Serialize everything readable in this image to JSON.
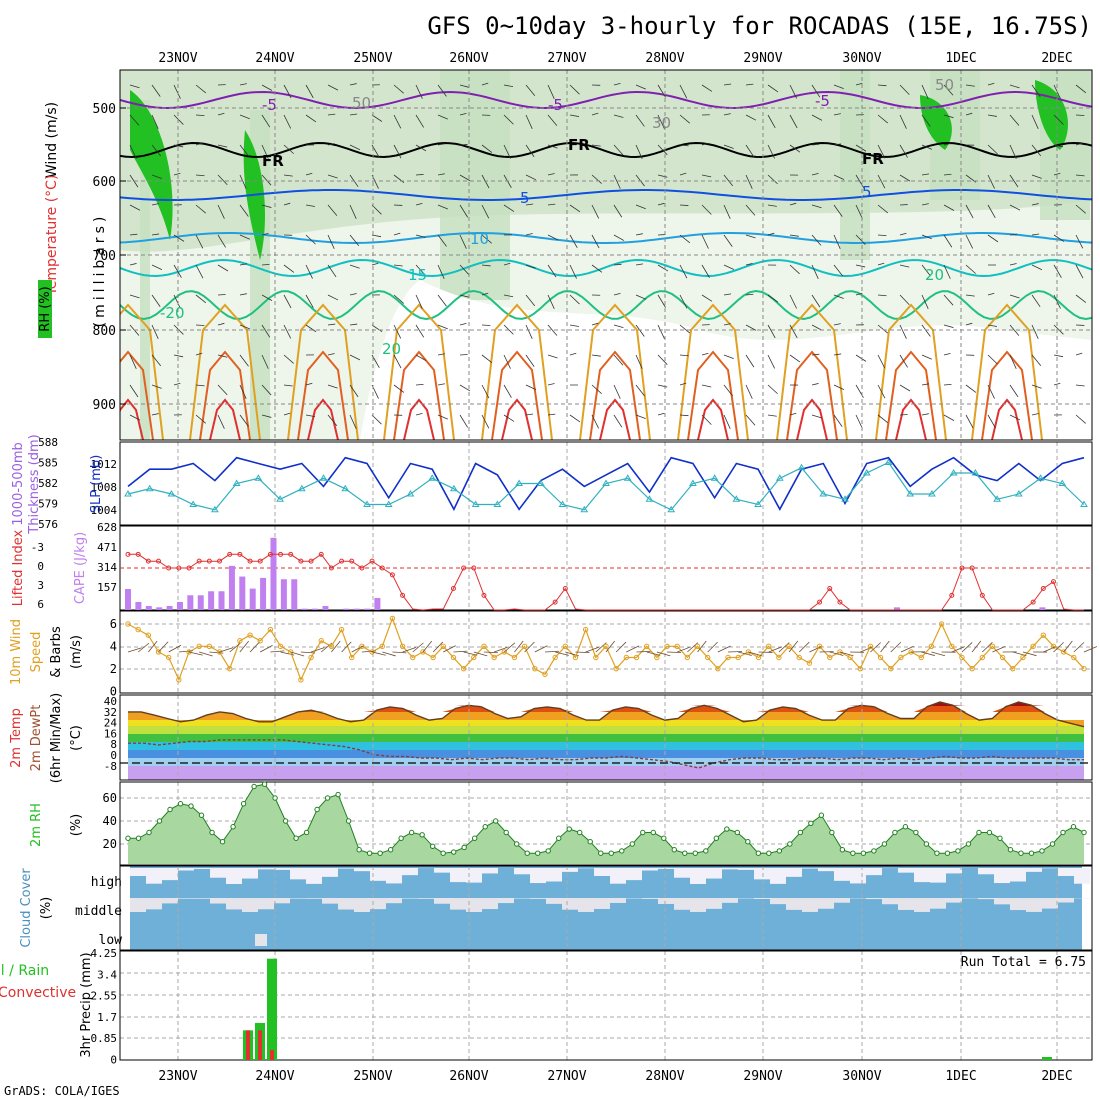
{
  "title": "GFS 0~10day 3-hourly for ROCADAS (15E, 16.75S)",
  "credit": "GrADS: COLA/IGES",
  "dates": [
    "23NOV",
    "24NOV",
    "25NOV",
    "26NOV",
    "27NOV",
    "28NOV",
    "29NOV",
    "30NOV",
    "1DEC",
    "2DEC"
  ],
  "colors": {
    "green": "#22c022",
    "red": "#e03030",
    "blue": "#1030c8",
    "cyan": "#30b0c0",
    "purple": "#c080f0",
    "orange": "#e0a020",
    "sky": "#6fb0d8",
    "cloud_light": "#f2f0f8"
  },
  "panels": {
    "upper": {
      "label_wind": "Wind (m/s)",
      "label_temp": "Temperature (°C)",
      "label_rh": "RH (%)",
      "label_units": "(millibars)",
      "y_ticks": [
        "500",
        "600",
        "700",
        "800",
        "900"
      ],
      "contour_labels": [
        "-5",
        "-5",
        "-5",
        "FR",
        "FR",
        "FR",
        "5",
        "5",
        "10",
        "15",
        "20",
        "20",
        "-20",
        "50",
        "50",
        "30"
      ]
    },
    "thickness": {
      "label_a": "1000-500mb",
      "label_b": "Thickness (dm)",
      "label_c": "SLP (mb)",
      "left_ticks": [
        "588",
        "585",
        "582",
        "579",
        "576"
      ],
      "right_ticks": [
        "1012",
        "1008",
        "1004"
      ]
    },
    "cape": {
      "label_a": "Lifted Index",
      "label_b": "CAPE (J/kg)",
      "left_ticks": [
        "-3",
        "0",
        "3",
        "6"
      ],
      "right_ticks": [
        "628",
        "471",
        "314",
        "157"
      ]
    },
    "wind": {
      "label_a": "10m Wind",
      "label_b": "Speed",
      "label_c": "& Barbs",
      "label_d": "(m/s)",
      "ticks": [
        "6",
        "4",
        "2",
        "0"
      ]
    },
    "temp": {
      "label_a": "2m Temp",
      "label_b": "2m DewPt",
      "label_c": "(6hr Min/Max)",
      "label_d": "(°C)",
      "ticks": [
        "40",
        "32",
        "24",
        "16",
        "8",
        "0",
        "-8"
      ]
    },
    "rh": {
      "label_a": "2m RH",
      "label_b": "(%)",
      "ticks": [
        "60",
        "40",
        "20"
      ]
    },
    "cloud": {
      "label_a": "Cloud Cover",
      "label_b": "(%)",
      "levels": [
        "high",
        "middle",
        "low"
      ]
    },
    "precip": {
      "label_a": "Total / Rain",
      "label_b": "Convective",
      "label_c": "3hr Precip (mm)",
      "ticks": [
        "4.25",
        "3.4",
        "2.55",
        "1.7",
        "0.85",
        "0"
      ],
      "run_total": "Run Total = 6.75"
    }
  },
  "chart_data": [
    {
      "type": "line",
      "name": "thickness_slp",
      "x_start": "22NOV 12Z",
      "x_step_hours": 6,
      "series": [
        {
          "name": "SLP",
          "color": "#1030c8",
          "values": [
            1008,
            1011,
            1011,
            1012,
            1009,
            1013,
            1012,
            1011,
            1012,
            1008,
            1013,
            1012,
            1006,
            1012,
            1011,
            1004,
            1012,
            1010,
            1004,
            1009,
            1011,
            1008,
            1010,
            1012,
            1007,
            1013,
            1012,
            1006,
            1012,
            1011,
            1004,
            1011,
            1012,
            1005,
            1012,
            1013,
            1008,
            1011,
            1013,
            1010,
            1009,
            1012,
            1009,
            1012,
            1013
          ]
        },
        {
          "name": "Thickness",
          "color": "#30b0c0",
          "values": [
            580,
            581,
            580,
            578,
            577,
            582,
            583,
            579,
            581,
            583,
            581,
            578,
            578,
            580,
            583,
            581,
            578,
            578,
            582,
            582,
            578,
            577,
            582,
            583,
            579,
            577,
            582,
            583,
            579,
            578,
            583,
            585,
            580,
            579,
            584,
            586,
            580,
            580,
            584,
            584,
            579,
            580,
            583,
            582,
            578
          ]
        }
      ]
    },
    {
      "type": "bar",
      "name": "cape",
      "units": "J/kg",
      "values": [
        157,
        60,
        30,
        20,
        30,
        60,
        110,
        110,
        140,
        140,
        330,
        250,
        160,
        240,
        540,
        230,
        230,
        10,
        10,
        30,
        0,
        10,
        10,
        10,
        90,
        0,
        0,
        0,
        0,
        0,
        0,
        0,
        0,
        0,
        0,
        0,
        0,
        0,
        0,
        0,
        0,
        0,
        0,
        0,
        0,
        0,
        0,
        0,
        0,
        0,
        0,
        0,
        0,
        0,
        0,
        0,
        0,
        0,
        0,
        0,
        0,
        0,
        0,
        0,
        0,
        0,
        0,
        0,
        0,
        0,
        0,
        0,
        0,
        0,
        20,
        0,
        0,
        0,
        0,
        0,
        0,
        0,
        0,
        0,
        0,
        0,
        0,
        0,
        20,
        0,
        0,
        0,
        0
      ]
    },
    {
      "type": "line",
      "name": "lifted_index",
      "values": [
        -2,
        -2,
        -1,
        -1,
        0,
        0,
        0,
        -1,
        -1,
        -1,
        -2,
        -2,
        -1,
        -1,
        -2,
        -2,
        -2,
        -1,
        -1,
        -2,
        0,
        -1,
        -1,
        0,
        -1,
        0,
        1,
        4,
        6,
        7,
        6,
        6,
        3,
        0,
        0,
        4,
        7,
        7,
        6,
        7,
        7,
        7,
        5,
        3,
        6,
        7,
        7,
        7,
        7,
        7,
        7,
        7,
        7,
        7,
        7,
        7,
        7,
        7,
        7,
        7,
        7,
        7,
        7,
        7,
        7,
        7,
        7,
        7,
        5,
        3,
        5,
        7,
        7,
        7,
        7,
        7,
        7,
        7,
        7,
        7,
        7,
        4,
        0,
        0,
        4,
        7,
        7,
        7,
        7,
        5,
        3,
        2,
        6,
        7,
        7
      ]
    },
    {
      "type": "line",
      "name": "wind10m",
      "units": "m/s",
      "values": [
        6,
        5.5,
        5,
        3.5,
        3,
        1,
        3.5,
        4,
        4,
        3.5,
        2,
        4.5,
        5,
        4.5,
        5.5,
        4,
        3.5,
        1,
        3,
        4.5,
        4,
        5.5,
        3,
        4,
        3.5,
        4,
        6.5,
        4,
        3,
        3.5,
        3,
        4,
        3,
        2,
        3,
        4,
        3,
        3.5,
        3,
        4,
        2,
        1.5,
        3,
        4,
        3,
        5.5,
        3,
        4,
        2,
        3,
        3,
        4,
        3,
        4,
        4,
        3,
        4,
        3,
        2,
        3,
        3,
        3.5,
        3,
        4,
        3,
        4,
        3,
        2.5,
        4,
        3,
        3.5,
        3,
        2,
        4,
        3,
        2,
        3,
        3.5,
        3,
        4,
        6,
        4,
        3,
        2,
        3,
        4,
        3,
        2,
        3,
        4,
        5,
        4,
        3.5,
        3,
        2
      ]
    },
    {
      "type": "area",
      "name": "temp2m",
      "units": "°C",
      "values": [
        31,
        31,
        29,
        27,
        25,
        26,
        29,
        31,
        30,
        27,
        25,
        25,
        28,
        31,
        32,
        30,
        27,
        25,
        26,
        32,
        34,
        33,
        29,
        26,
        27,
        33,
        35,
        34,
        30,
        27,
        28,
        33,
        34,
        33,
        29,
        26,
        26,
        32,
        34,
        33,
        29,
        26,
        27,
        33,
        35,
        33,
        29,
        25,
        26,
        32,
        34,
        33,
        29,
        26,
        26,
        33,
        35,
        34,
        30,
        27,
        27,
        34,
        37,
        35,
        30,
        26,
        27,
        34,
        37,
        35,
        30,
        26,
        24,
        22
      ]
    },
    {
      "type": "line",
      "name": "dewpt2m",
      "units": "°C",
      "values": [
        12,
        12,
        11,
        12,
        13,
        13,
        14,
        14,
        14,
        14,
        14,
        13,
        12,
        11,
        10,
        8,
        5,
        4,
        4,
        3,
        3,
        2,
        3,
        2,
        3,
        3,
        2,
        3,
        2,
        2,
        3,
        3,
        4,
        3,
        2,
        1,
        -1,
        -3,
        0,
        2,
        3,
        3,
        2,
        2,
        3,
        3,
        2,
        3,
        3,
        2,
        3,
        2,
        3,
        4,
        3,
        3,
        4,
        3,
        3,
        3,
        3,
        2,
        2
      ]
    },
    {
      "type": "area",
      "name": "rh2m",
      "units": "%",
      "values": [
        25,
        25,
        30,
        40,
        50,
        55,
        53,
        45,
        30,
        22,
        35,
        55,
        70,
        72,
        60,
        40,
        25,
        30,
        50,
        60,
        63,
        40,
        15,
        12,
        12,
        15,
        25,
        30,
        28,
        18,
        12,
        13,
        17,
        25,
        35,
        40,
        30,
        20,
        12,
        12,
        14,
        25,
        33,
        30,
        22,
        12,
        12,
        14,
        20,
        30,
        30,
        25,
        15,
        12,
        12,
        14,
        25,
        33,
        30,
        22,
        12,
        12,
        14,
        20,
        30,
        38,
        45,
        30,
        15,
        12,
        12,
        14,
        20,
        30,
        35,
        30,
        20,
        12,
        12,
        14,
        20,
        30,
        30,
        25,
        15,
        12,
        12,
        14,
        20,
        30,
        35,
        30
      ]
    },
    {
      "type": "bar",
      "name": "precip3hr",
      "units": "mm",
      "series": [
        {
          "name": "Total",
          "values": [
            1.2,
            1.5,
            4.1
          ]
        },
        {
          "name": "Convective",
          "values": [
            1.2,
            1.2,
            0.4
          ]
        }
      ],
      "run_total": 6.75
    }
  ]
}
